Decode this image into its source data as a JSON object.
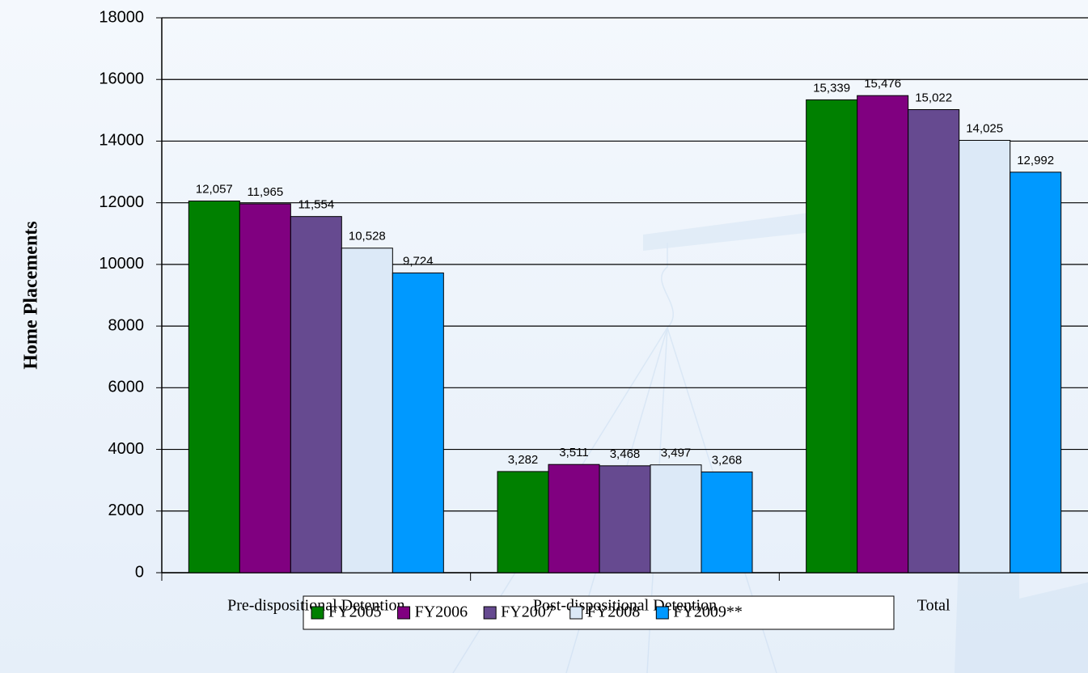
{
  "chart_data": {
    "type": "bar",
    "y_label": "Home Placements",
    "categories": [
      "Pre-dispositional Detention",
      "Post-dispositional Detention",
      "Total"
    ],
    "series": [
      {
        "name": "FY2005",
        "color": "#008000",
        "values": [
          12057,
          3282,
          15339
        ],
        "value_labels": [
          "12,057",
          "3,282",
          "15,339"
        ]
      },
      {
        "name": "FY2006",
        "color": "#800080",
        "values": [
          11965,
          3511,
          15476
        ],
        "value_labels": [
          "11,965",
          "3,511",
          "15,476"
        ]
      },
      {
        "name": "FY2007",
        "color": "#664a90",
        "values": [
          11554,
          3468,
          15022
        ],
        "value_labels": [
          "11,554",
          "3,468",
          "15,022"
        ]
      },
      {
        "name": "FY2008",
        "color": "#dce9f7",
        "values": [
          10528,
          3497,
          14025
        ],
        "value_labels": [
          "10,528",
          "3,497",
          "14,025"
        ]
      },
      {
        "name": "FY2009**",
        "color": "#0099ff",
        "values": [
          9724,
          3268,
          12992
        ],
        "value_labels": [
          "9,724",
          "3,268",
          "12,992"
        ]
      }
    ],
    "ylim": [
      0,
      18000
    ],
    "yticks": [
      0,
      2000,
      4000,
      6000,
      8000,
      10000,
      12000,
      14000,
      16000,
      18000
    ],
    "grid": true,
    "legend": "bottom"
  }
}
